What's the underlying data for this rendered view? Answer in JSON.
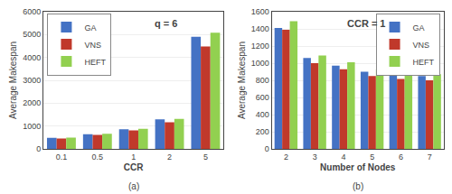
{
  "chart_data": [
    {
      "type": "bar",
      "title": "q = 6",
      "xlabel": "CCR",
      "ylabel": "Average Makespan",
      "annotations": [
        "(a)"
      ],
      "categories": [
        "0.1",
        "0.5",
        "1",
        "2",
        "5"
      ],
      "series": [
        {
          "name": "GA",
          "color": "#4472C4",
          "values": [
            480,
            640,
            860,
            1290,
            4900
          ]
        },
        {
          "name": "VNS",
          "color": "#C0392B",
          "values": [
            450,
            615,
            810,
            1160,
            4480
          ]
        },
        {
          "name": "HEFT",
          "color": "#92D050",
          "values": [
            490,
            660,
            880,
            1310,
            5080
          ]
        }
      ],
      "ylim": [
        0,
        6000
      ],
      "yticks": [
        0,
        1000,
        2000,
        3000,
        4000,
        5000,
        6000
      ],
      "grid": true,
      "legend": "upper left"
    },
    {
      "type": "bar",
      "title": "CCR = 1",
      "xlabel": "Number of Nodes",
      "ylabel": "Average Makespan",
      "annotations": [
        "(b)"
      ],
      "categories": [
        "2",
        "3",
        "4",
        "5",
        "6",
        "7"
      ],
      "series": [
        {
          "name": "GA",
          "color": "#4472C4",
          "values": [
            1410,
            1060,
            970,
            900,
            855,
            850
          ]
        },
        {
          "name": "VNS",
          "color": "#C0392B",
          "values": [
            1390,
            1000,
            930,
            850,
            815,
            800
          ]
        },
        {
          "name": "HEFT",
          "color": "#92D050",
          "values": [
            1490,
            1090,
            1010,
            930,
            890,
            870
          ]
        }
      ],
      "ylim": [
        0,
        1600
      ],
      "yticks": [
        0,
        200,
        400,
        600,
        800,
        1000,
        1200,
        1400,
        1600
      ],
      "grid": true,
      "legend": "upper right"
    }
  ]
}
